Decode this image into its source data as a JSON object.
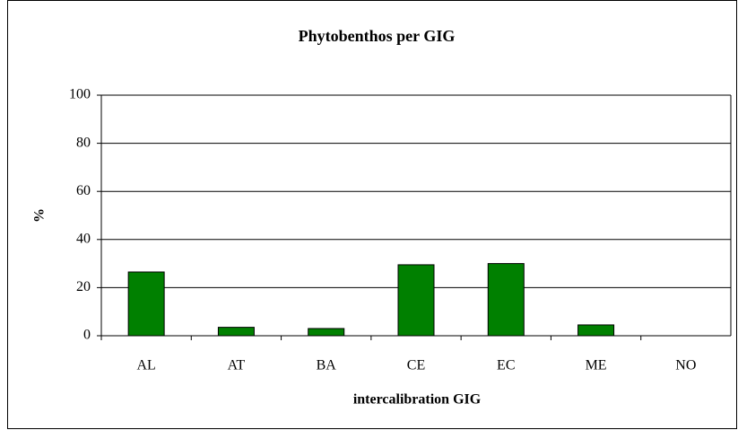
{
  "chart_data": {
    "type": "bar",
    "title": "Phytobenthos per GIG",
    "x_label": "intercalibration GIG",
    "y_label": "%",
    "categories": [
      "AL",
      "AT",
      "BA",
      "CE",
      "EC",
      "ME",
      "NO"
    ],
    "values": [
      26.5,
      3.5,
      3,
      29.5,
      30,
      4.5,
      0
    ],
    "color": "#008000",
    "ylim": [
      0,
      100
    ],
    "yticks": [
      0,
      20,
      40,
      60,
      80,
      100
    ],
    "grid": true
  }
}
